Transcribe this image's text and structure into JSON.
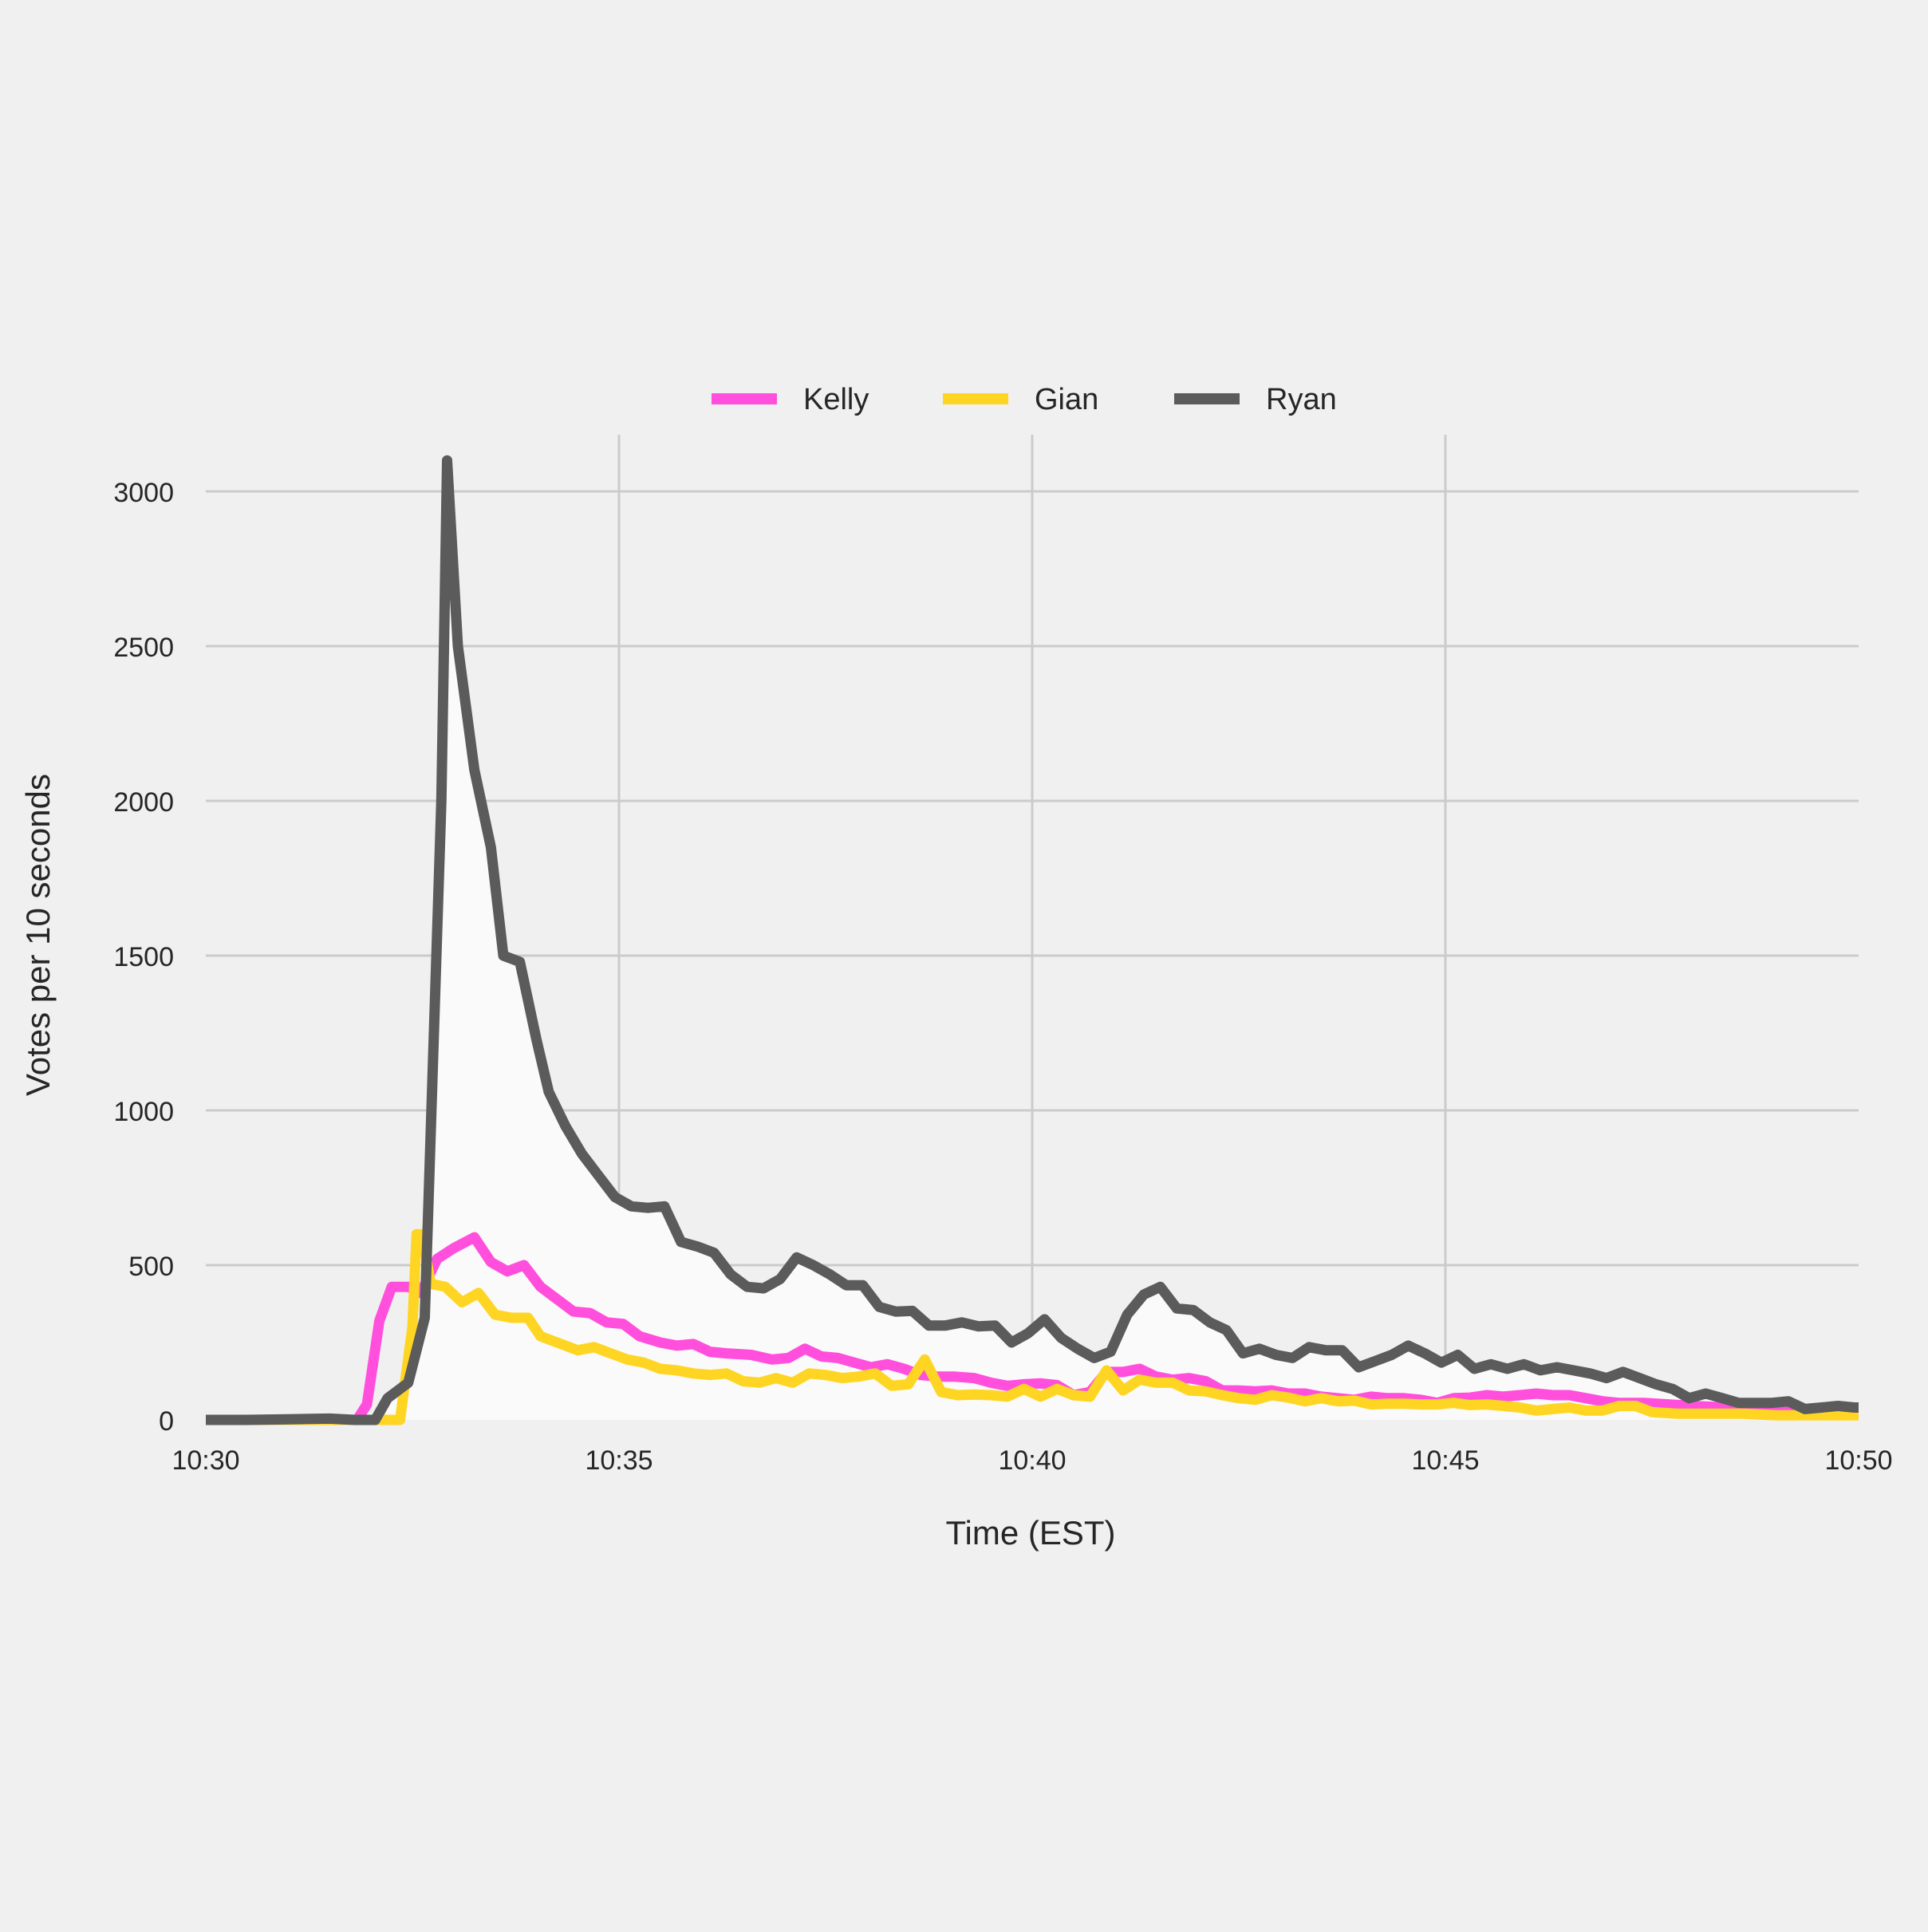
{
  "chart_data": {
    "type": "line",
    "title": "",
    "xlabel": "Time (EST)",
    "ylabel": "Votes per 10 seconds",
    "x_tick_labels": [
      "10:30",
      "10:35",
      "10:40",
      "10:45",
      "10:50"
    ],
    "x_tick_minutes": [
      0,
      5,
      10,
      15,
      20
    ],
    "xlim_minutes": [
      0,
      20
    ],
    "y_ticks": [
      0,
      500,
      1000,
      1500,
      2000,
      2500,
      3000
    ],
    "ylim": [
      0,
      3200
    ],
    "grid": true,
    "legend_position": "top-center",
    "fill_under_series": "Ryan",
    "fill_color": "#fafafa",
    "series": [
      {
        "name": "Kelly",
        "color": "#ff4fdc",
        "points": [
          [
            0,
            0
          ],
          [
            1.5,
            0
          ],
          [
            1.83,
            0
          ],
          [
            1.95,
            50
          ],
          [
            2.1,
            320
          ],
          [
            2.25,
            430
          ],
          [
            2.45,
            430
          ],
          [
            2.6,
            410
          ],
          [
            2.8,
            520
          ],
          [
            3.0,
            555
          ],
          [
            3.25,
            590
          ],
          [
            3.45,
            510
          ],
          [
            3.65,
            480
          ],
          [
            3.85,
            500
          ],
          [
            4.05,
            430
          ],
          [
            4.3,
            380
          ],
          [
            4.45,
            350
          ],
          [
            4.65,
            345
          ],
          [
            4.85,
            315
          ],
          [
            5.05,
            310
          ],
          [
            5.25,
            270
          ],
          [
            5.5,
            250
          ],
          [
            5.7,
            240
          ],
          [
            5.9,
            245
          ],
          [
            6.1,
            220
          ],
          [
            6.3,
            215
          ],
          [
            6.6,
            210
          ],
          [
            6.85,
            195
          ],
          [
            7.05,
            200
          ],
          [
            7.25,
            230
          ],
          [
            7.45,
            205
          ],
          [
            7.65,
            200
          ],
          [
            7.85,
            185
          ],
          [
            8.05,
            170
          ],
          [
            8.25,
            180
          ],
          [
            8.45,
            165
          ],
          [
            8.65,
            145
          ],
          [
            8.85,
            140
          ],
          [
            9.05,
            140
          ],
          [
            9.3,
            135
          ],
          [
            9.5,
            120
          ],
          [
            9.7,
            110
          ],
          [
            9.9,
            115
          ],
          [
            10.1,
            118
          ],
          [
            10.3,
            112
          ],
          [
            10.5,
            80
          ],
          [
            10.7,
            90
          ],
          [
            10.9,
            155
          ],
          [
            11.1,
            155
          ],
          [
            11.3,
            165
          ],
          [
            11.5,
            140
          ],
          [
            11.7,
            130
          ],
          [
            11.9,
            135
          ],
          [
            12.1,
            125
          ],
          [
            12.3,
            95
          ],
          [
            12.5,
            95
          ],
          [
            12.7,
            92
          ],
          [
            12.9,
            95
          ],
          [
            13.1,
            85
          ],
          [
            13.3,
            85
          ],
          [
            13.5,
            75
          ],
          [
            13.7,
            70
          ],
          [
            13.9,
            65
          ],
          [
            14.1,
            75
          ],
          [
            14.3,
            70
          ],
          [
            14.5,
            70
          ],
          [
            14.7,
            65
          ],
          [
            14.9,
            55
          ],
          [
            15.1,
            70
          ],
          [
            15.3,
            72
          ],
          [
            15.5,
            80
          ],
          [
            15.7,
            75
          ],
          [
            15.9,
            80
          ],
          [
            16.1,
            85
          ],
          [
            16.3,
            80
          ],
          [
            16.5,
            80
          ],
          [
            16.7,
            70
          ],
          [
            16.9,
            60
          ],
          [
            17.1,
            55
          ],
          [
            17.4,
            55
          ],
          [
            17.7,
            50
          ],
          [
            18.0,
            45
          ],
          [
            18.4,
            40
          ],
          [
            18.8,
            35
          ],
          [
            19.2,
            30
          ],
          [
            19.6,
            25
          ],
          [
            20,
            25
          ]
        ]
      },
      {
        "name": "Gian",
        "color": "#ffd524",
        "points": [
          [
            0,
            0
          ],
          [
            2.2,
            0
          ],
          [
            2.35,
            0
          ],
          [
            2.5,
            300
          ],
          [
            2.55,
            600
          ],
          [
            2.62,
            600
          ],
          [
            2.72,
            440
          ],
          [
            2.9,
            430
          ],
          [
            3.1,
            380
          ],
          [
            3.3,
            410
          ],
          [
            3.5,
            340
          ],
          [
            3.7,
            330
          ],
          [
            3.9,
            330
          ],
          [
            4.05,
            270
          ],
          [
            4.3,
            245
          ],
          [
            4.5,
            225
          ],
          [
            4.7,
            235
          ],
          [
            4.9,
            215
          ],
          [
            5.1,
            195
          ],
          [
            5.3,
            185
          ],
          [
            5.5,
            165
          ],
          [
            5.7,
            160
          ],
          [
            5.9,
            150
          ],
          [
            6.1,
            145
          ],
          [
            6.3,
            150
          ],
          [
            6.5,
            125
          ],
          [
            6.7,
            120
          ],
          [
            6.9,
            135
          ],
          [
            7.1,
            120
          ],
          [
            7.3,
            150
          ],
          [
            7.5,
            145
          ],
          [
            7.7,
            135
          ],
          [
            7.9,
            140
          ],
          [
            8.1,
            150
          ],
          [
            8.3,
            110
          ],
          [
            8.5,
            115
          ],
          [
            8.7,
            195
          ],
          [
            8.9,
            90
          ],
          [
            9.1,
            80
          ],
          [
            9.3,
            82
          ],
          [
            9.5,
            80
          ],
          [
            9.7,
            75
          ],
          [
            9.9,
            100
          ],
          [
            10.1,
            75
          ],
          [
            10.3,
            100
          ],
          [
            10.5,
            80
          ],
          [
            10.7,
            75
          ],
          [
            10.9,
            160
          ],
          [
            11.1,
            95
          ],
          [
            11.3,
            130
          ],
          [
            11.5,
            120
          ],
          [
            11.7,
            120
          ],
          [
            11.9,
            95
          ],
          [
            12.1,
            92
          ],
          [
            12.3,
            80
          ],
          [
            12.5,
            70
          ],
          [
            12.7,
            65
          ],
          [
            12.9,
            80
          ],
          [
            13.1,
            72
          ],
          [
            13.3,
            60
          ],
          [
            13.5,
            70
          ],
          [
            13.7,
            60
          ],
          [
            13.9,
            62
          ],
          [
            14.1,
            50
          ],
          [
            14.3,
            52
          ],
          [
            14.5,
            52
          ],
          [
            14.7,
            50
          ],
          [
            14.9,
            50
          ],
          [
            15.1,
            55
          ],
          [
            15.3,
            48
          ],
          [
            15.5,
            50
          ],
          [
            15.7,
            45
          ],
          [
            15.9,
            40
          ],
          [
            16.1,
            30
          ],
          [
            16.3,
            35
          ],
          [
            16.5,
            40
          ],
          [
            16.7,
            30
          ],
          [
            16.9,
            30
          ],
          [
            17.1,
            45
          ],
          [
            17.3,
            45
          ],
          [
            17.5,
            25
          ],
          [
            17.8,
            20
          ],
          [
            18.2,
            20
          ],
          [
            18.6,
            20
          ],
          [
            19.0,
            15
          ],
          [
            19.4,
            15
          ],
          [
            19.8,
            15
          ],
          [
            20,
            15
          ]
        ]
      },
      {
        "name": "Ryan",
        "color": "#5b5b5b",
        "points": [
          [
            0,
            0
          ],
          [
            0.5,
            0
          ],
          [
            1.0,
            2
          ],
          [
            1.5,
            4
          ],
          [
            1.8,
            0
          ],
          [
            2.05,
            0
          ],
          [
            2.2,
            70
          ],
          [
            2.45,
            120
          ],
          [
            2.65,
            330
          ],
          [
            2.85,
            2000
          ],
          [
            2.92,
            3100
          ],
          [
            3.05,
            2500
          ],
          [
            3.25,
            2100
          ],
          [
            3.45,
            1850
          ],
          [
            3.6,
            1500
          ],
          [
            3.8,
            1480
          ],
          [
            4.0,
            1230
          ],
          [
            4.15,
            1060
          ],
          [
            4.35,
            950
          ],
          [
            4.55,
            860
          ],
          [
            4.75,
            790
          ],
          [
            4.95,
            720
          ],
          [
            5.15,
            690
          ],
          [
            5.35,
            685
          ],
          [
            5.55,
            690
          ],
          [
            5.75,
            575
          ],
          [
            5.95,
            560
          ],
          [
            6.15,
            540
          ],
          [
            6.35,
            470
          ],
          [
            6.55,
            430
          ],
          [
            6.75,
            425
          ],
          [
            6.95,
            455
          ],
          [
            7.15,
            525
          ],
          [
            7.35,
            500
          ],
          [
            7.55,
            470
          ],
          [
            7.75,
            435
          ],
          [
            7.95,
            435
          ],
          [
            8.15,
            365
          ],
          [
            8.35,
            350
          ],
          [
            8.55,
            352
          ],
          [
            8.75,
            305
          ],
          [
            8.95,
            305
          ],
          [
            9.15,
            315
          ],
          [
            9.35,
            302
          ],
          [
            9.55,
            305
          ],
          [
            9.75,
            250
          ],
          [
            9.95,
            280
          ],
          [
            10.15,
            325
          ],
          [
            10.35,
            265
          ],
          [
            10.55,
            230
          ],
          [
            10.75,
            200
          ],
          [
            10.95,
            220
          ],
          [
            11.15,
            340
          ],
          [
            11.35,
            405
          ],
          [
            11.55,
            430
          ],
          [
            11.75,
            360
          ],
          [
            11.95,
            355
          ],
          [
            12.15,
            315
          ],
          [
            12.35,
            290
          ],
          [
            12.55,
            215
          ],
          [
            12.75,
            230
          ],
          [
            12.95,
            210
          ],
          [
            13.15,
            200
          ],
          [
            13.35,
            235
          ],
          [
            13.55,
            225
          ],
          [
            13.75,
            225
          ],
          [
            13.95,
            170
          ],
          [
            14.15,
            190
          ],
          [
            14.35,
            210
          ],
          [
            14.55,
            240
          ],
          [
            14.75,
            215
          ],
          [
            14.95,
            185
          ],
          [
            15.15,
            210
          ],
          [
            15.35,
            165
          ],
          [
            15.55,
            180
          ],
          [
            15.75,
            165
          ],
          [
            15.95,
            180
          ],
          [
            16.15,
            160
          ],
          [
            16.35,
            170
          ],
          [
            16.55,
            160
          ],
          [
            16.75,
            150
          ],
          [
            16.95,
            135
          ],
          [
            17.15,
            155
          ],
          [
            17.35,
            135
          ],
          [
            17.55,
            115
          ],
          [
            17.75,
            100
          ],
          [
            17.95,
            70
          ],
          [
            18.15,
            85
          ],
          [
            18.35,
            70
          ],
          [
            18.55,
            55
          ],
          [
            18.75,
            55
          ],
          [
            18.95,
            55
          ],
          [
            19.15,
            60
          ],
          [
            19.35,
            35
          ],
          [
            19.55,
            40
          ],
          [
            19.75,
            45
          ],
          [
            19.95,
            40
          ],
          [
            20,
            40
          ]
        ]
      }
    ]
  }
}
